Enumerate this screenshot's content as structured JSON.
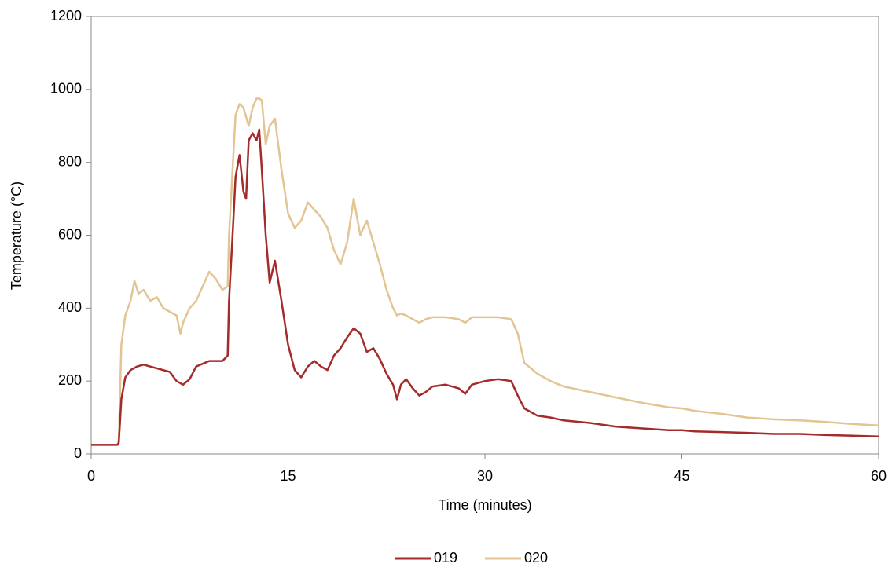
{
  "chart_data": {
    "type": "line",
    "x_label": "Time (minutes)",
    "y_label": "Temperature (°C)",
    "xlim": [
      0,
      60
    ],
    "xticks": [
      0,
      15,
      30,
      45,
      60
    ],
    "ylim": [
      0,
      1200
    ],
    "yticks": [
      0,
      200,
      400,
      600,
      800,
      1000,
      1200
    ],
    "legend": "bottom",
    "series": [
      {
        "name": "019",
        "color": "#a52a2a",
        "x": [
          0,
          1,
          2,
          2.1,
          2.3,
          2.6,
          3,
          3.5,
          4,
          5,
          6,
          6.5,
          7,
          7.5,
          8,
          9,
          10,
          10.4,
          10.5,
          10.8,
          11,
          11.3,
          11.6,
          11.8,
          12,
          12.3,
          12.6,
          12.8,
          13,
          13.3,
          13.6,
          14,
          14.5,
          15,
          15.5,
          16,
          16.5,
          17,
          17.5,
          18,
          18.5,
          19,
          19.5,
          20,
          20.5,
          21,
          21.5,
          22,
          22.5,
          23,
          23.3,
          23.6,
          24,
          24.5,
          25,
          25.5,
          26,
          27,
          28,
          28.5,
          29,
          30,
          31,
          32,
          32.5,
          33,
          34,
          35,
          36,
          38,
          40,
          42,
          44,
          45,
          46,
          48,
          50,
          52,
          54,
          56,
          58,
          60
        ],
        "values": [
          25,
          25,
          25,
          30,
          150,
          210,
          230,
          240,
          245,
          235,
          225,
          200,
          190,
          205,
          240,
          255,
          255,
          270,
          420,
          620,
          760,
          820,
          720,
          700,
          860,
          880,
          860,
          890,
          780,
          600,
          470,
          530,
          420,
          300,
          230,
          210,
          240,
          255,
          240,
          230,
          270,
          290,
          320,
          345,
          330,
          280,
          290,
          260,
          220,
          190,
          150,
          190,
          205,
          180,
          160,
          170,
          185,
          190,
          180,
          165,
          190,
          200,
          205,
          200,
          160,
          125,
          105,
          100,
          92,
          85,
          75,
          70,
          65,
          65,
          62,
          60,
          58,
          55,
          55,
          52,
          50,
          48
        ]
      },
      {
        "name": "020",
        "color": "#e3c493",
        "x": [
          0,
          2,
          2.1,
          2.3,
          2.6,
          3,
          3.3,
          3.6,
          4,
          4.5,
          5,
          5.5,
          6,
          6.5,
          6.8,
          7,
          7.5,
          8,
          8.5,
          9,
          9.5,
          10,
          10.4,
          10.5,
          10.8,
          11,
          11.3,
          11.6,
          12,
          12.3,
          12.6,
          12.8,
          13,
          13.3,
          13.6,
          14,
          14.5,
          15,
          15.5,
          16,
          16.5,
          17,
          17.5,
          18,
          18.5,
          19,
          19.5,
          20,
          20.5,
          21,
          21.5,
          22,
          22.5,
          23,
          23.3,
          23.6,
          24,
          24.5,
          25,
          25.5,
          26,
          27,
          28,
          28.5,
          29,
          30,
          31,
          32,
          32.5,
          33,
          34,
          35,
          36,
          38,
          40,
          42,
          44,
          45,
          46,
          48,
          50,
          52,
          54,
          56,
          58,
          60
        ],
        "values": [
          25,
          25,
          40,
          300,
          380,
          420,
          475,
          440,
          450,
          420,
          430,
          400,
          390,
          380,
          330,
          360,
          400,
          420,
          460,
          500,
          480,
          450,
          460,
          600,
          800,
          930,
          960,
          950,
          900,
          950,
          975,
          975,
          970,
          850,
          900,
          920,
          780,
          660,
          620,
          640,
          690,
          670,
          650,
          620,
          560,
          520,
          580,
          700,
          600,
          640,
          580,
          520,
          450,
          400,
          380,
          385,
          380,
          370,
          360,
          370,
          375,
          375,
          370,
          360,
          375,
          375,
          375,
          370,
          330,
          250,
          220,
          200,
          185,
          170,
          155,
          140,
          128,
          125,
          118,
          110,
          100,
          95,
          92,
          88,
          82,
          78
        ]
      }
    ]
  }
}
